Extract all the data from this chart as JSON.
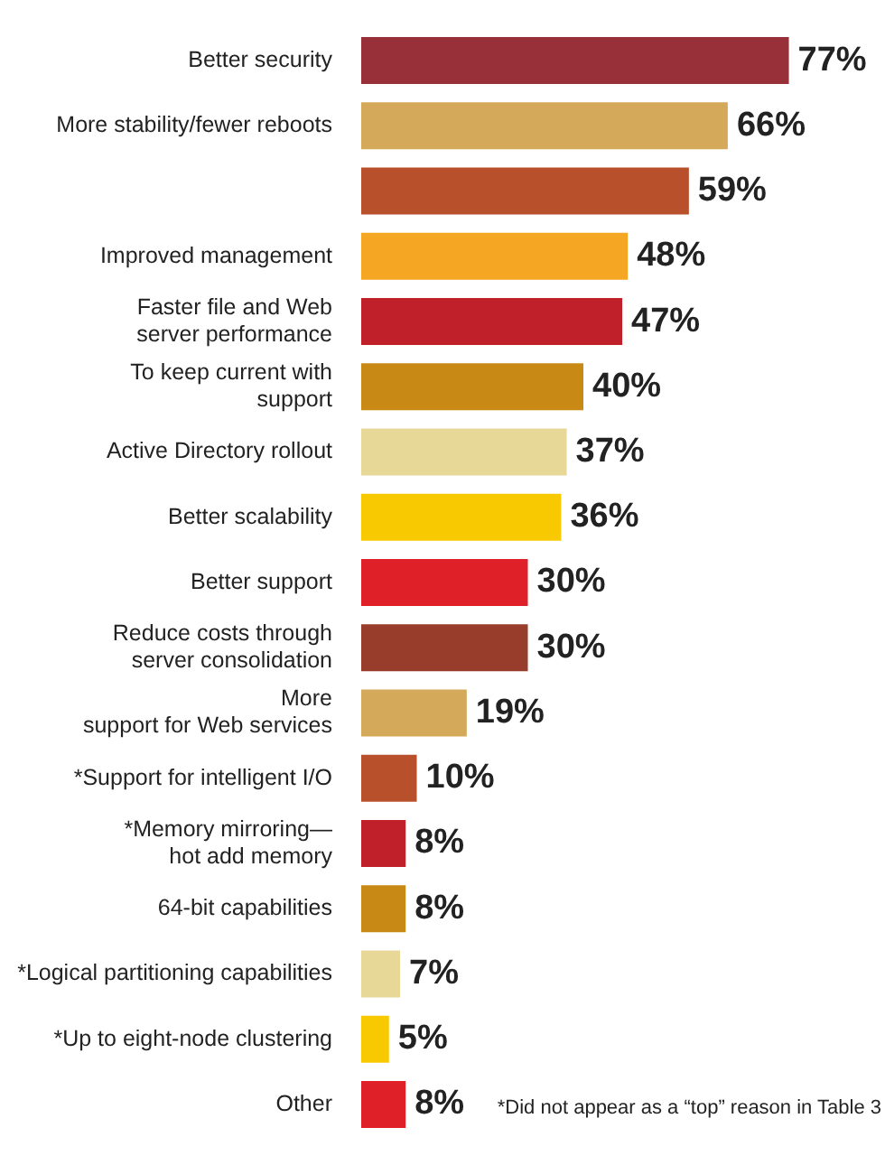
{
  "chart_data": {
    "type": "bar",
    "orientation": "horizontal",
    "categories": [
      "Better security",
      "More stability/fewer reboots",
      null,
      "Improved management",
      "Faster file and Web\nserver performance",
      "To keep current with\nsupport",
      "Active Directory rollout",
      "Better scalability",
      "Better support",
      "Reduce costs through\nserver consolidation",
      "More\nsupport for Web services",
      "*Support for intelligent I/O",
      "*Memory mirroring—\nhot add memory",
      "64-bit capabilities",
      "*Logical partitioning capabilities",
      "*Up to eight-node clustering",
      "Other"
    ],
    "values": [
      77,
      66,
      59,
      48,
      47,
      40,
      37,
      36,
      30,
      30,
      19,
      10,
      8,
      8,
      7,
      5,
      8
    ],
    "colors": [
      "#98303a",
      "#d4aa5a",
      "#b8502c",
      "#f5a623",
      "#c0202a",
      "#c88a14",
      "#e8d898",
      "#f8c800",
      "#e02028",
      "#983c2c",
      "#d4aa5a",
      "#b8502c",
      "#c0202a",
      "#c88a14",
      "#e8d898",
      "#f8c800",
      "#e02028"
    ],
    "value_labels": [
      "77%",
      "66%",
      "59%",
      "48%",
      "47%",
      "40%",
      "37%",
      "36%",
      "30%",
      "30%",
      "19%",
      "10%",
      "8%",
      "8%",
      "7%",
      "5%",
      "8%"
    ],
    "annotations": [
      "*Did not appear as a “top” reason in Table 3"
    ]
  }
}
